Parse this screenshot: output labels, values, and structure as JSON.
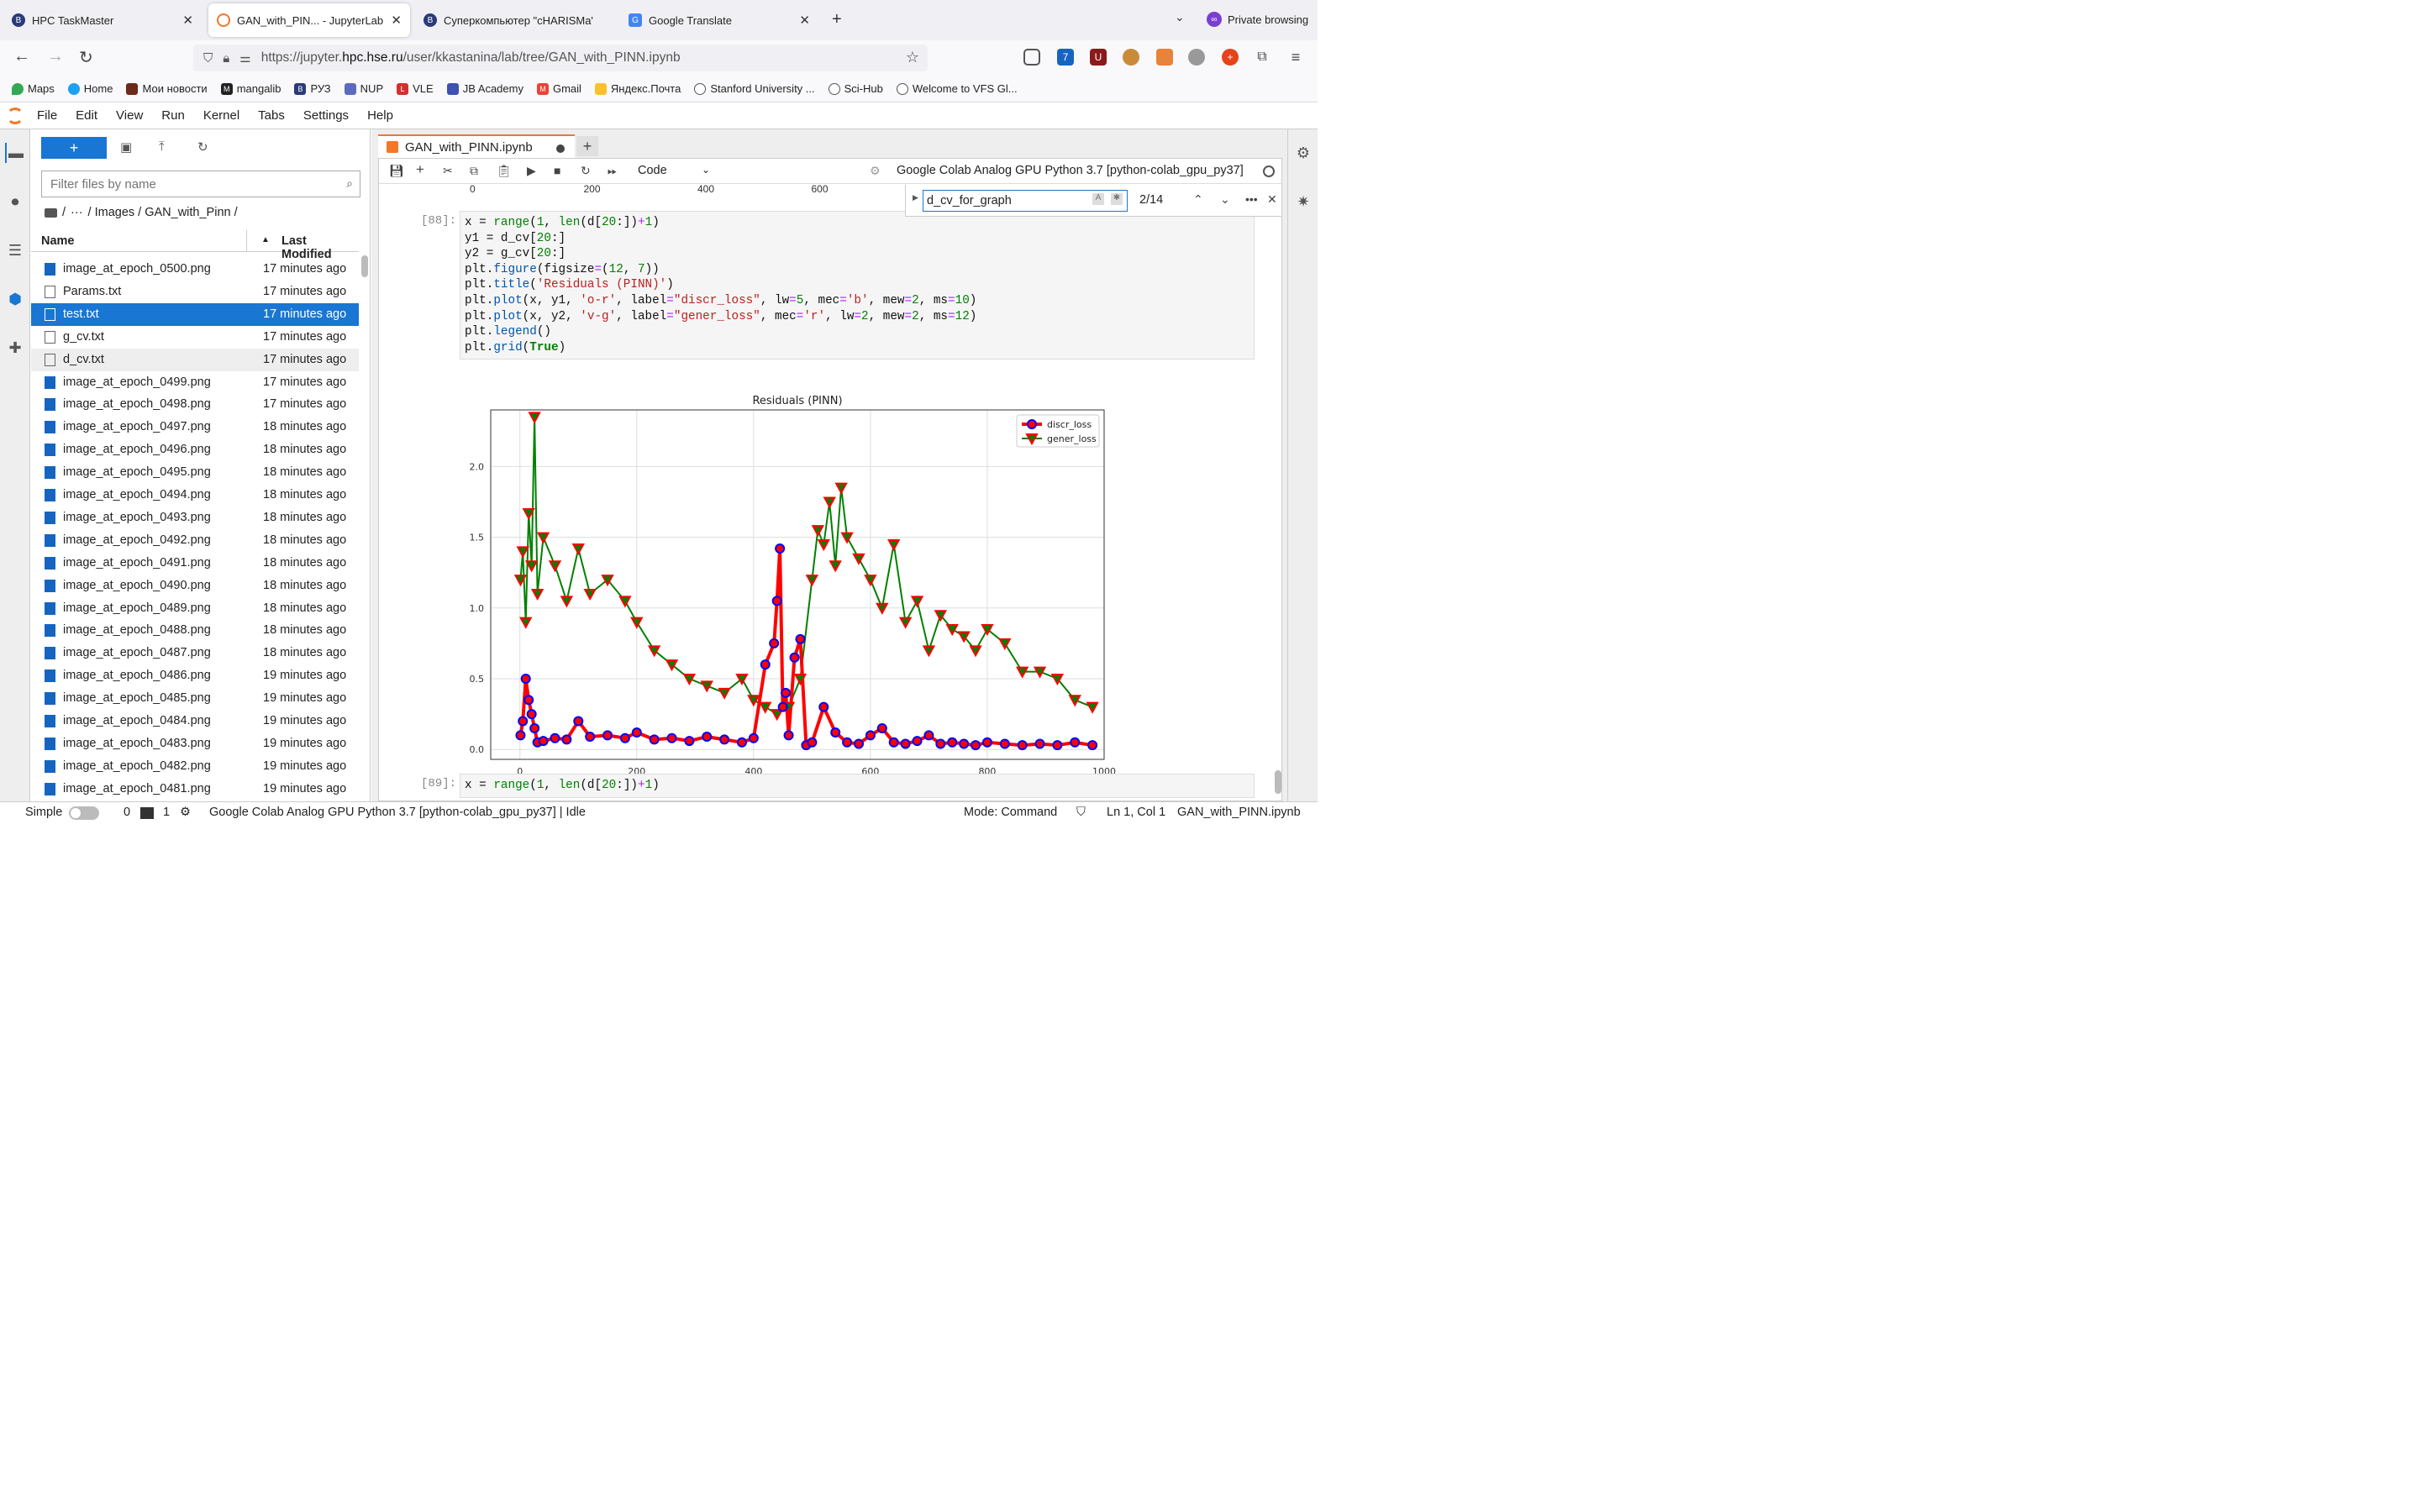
{
  "browser": {
    "tabs": [
      {
        "title": "HPC TaskMaster",
        "active": false
      },
      {
        "title": "GAN_with_PIN... - JupyterLab",
        "active": true
      },
      {
        "title": "Суперкомпьютер \"cHARISMa\"",
        "active": false
      },
      {
        "title": "Google Translate",
        "active": false
      }
    ],
    "private_label": "Private browsing",
    "url_prefix": "https://jupyter.",
    "url_domain": "hpc.hse.ru",
    "url_suffix": "/user/kkastanina/lab/tree/GAN_with_PINN.ipynb",
    "ext_badge": "7",
    "bookmarks": [
      "Maps",
      "Home",
      "Мои новости",
      "mangalib",
      "РУЗ",
      "NUP",
      "VLE",
      "JB Academy",
      "Gmail",
      "Яндекс.Почта",
      "Stanford University ...",
      "Sci-Hub",
      "Welcome to VFS Gl..."
    ]
  },
  "jupyter": {
    "menu": [
      "File",
      "Edit",
      "View",
      "Run",
      "Kernel",
      "Tabs",
      "Settings",
      "Help"
    ],
    "filter_placeholder": "Filter files by name",
    "breadcrumb": {
      "root": "/",
      "ellipsis": "···",
      "path": "/ Images / GAN_with_Pinn /"
    },
    "columns": {
      "name": "Name",
      "modified": "Last Modified"
    },
    "files": [
      {
        "name": "image_at_epoch_0500.png",
        "modified": "17 minutes ago",
        "type": "image"
      },
      {
        "name": "Params.txt",
        "modified": "17 minutes ago",
        "type": "text"
      },
      {
        "name": "test.txt",
        "modified": "17 minutes ago",
        "type": "text",
        "selected": true
      },
      {
        "name": "g_cv.txt",
        "modified": "17 minutes ago",
        "type": "text"
      },
      {
        "name": "d_cv.txt",
        "modified": "17 minutes ago",
        "type": "text",
        "hover": true
      },
      {
        "name": "image_at_epoch_0499.png",
        "modified": "17 minutes ago",
        "type": "image"
      },
      {
        "name": "image_at_epoch_0498.png",
        "modified": "17 minutes ago",
        "type": "image"
      },
      {
        "name": "image_at_epoch_0497.png",
        "modified": "18 minutes ago",
        "type": "image"
      },
      {
        "name": "image_at_epoch_0496.png",
        "modified": "18 minutes ago",
        "type": "image"
      },
      {
        "name": "image_at_epoch_0495.png",
        "modified": "18 minutes ago",
        "type": "image"
      },
      {
        "name": "image_at_epoch_0494.png",
        "modified": "18 minutes ago",
        "type": "image"
      },
      {
        "name": "image_at_epoch_0493.png",
        "modified": "18 minutes ago",
        "type": "image"
      },
      {
        "name": "image_at_epoch_0492.png",
        "modified": "18 minutes ago",
        "type": "image"
      },
      {
        "name": "image_at_epoch_0491.png",
        "modified": "18 minutes ago",
        "type": "image"
      },
      {
        "name": "image_at_epoch_0490.png",
        "modified": "18 minutes ago",
        "type": "image"
      },
      {
        "name": "image_at_epoch_0489.png",
        "modified": "18 minutes ago",
        "type": "image"
      },
      {
        "name": "image_at_epoch_0488.png",
        "modified": "18 minutes ago",
        "type": "image"
      },
      {
        "name": "image_at_epoch_0487.png",
        "modified": "18 minutes ago",
        "type": "image"
      },
      {
        "name": "image_at_epoch_0486.png",
        "modified": "19 minutes ago",
        "type": "image"
      },
      {
        "name": "image_at_epoch_0485.png",
        "modified": "19 minutes ago",
        "type": "image"
      },
      {
        "name": "image_at_epoch_0484.png",
        "modified": "19 minutes ago",
        "type": "image"
      },
      {
        "name": "image_at_epoch_0483.png",
        "modified": "19 minutes ago",
        "type": "image"
      },
      {
        "name": "image_at_epoch_0482.png",
        "modified": "19 minutes ago",
        "type": "image"
      },
      {
        "name": "image_at_epoch_0481.png",
        "modified": "19 minutes ago",
        "type": "image"
      }
    ],
    "notebook_tab": "GAN_with_PINN.ipynb",
    "cell_type": "Code",
    "kernel_name": "Google Colab Analog GPU Python 3.7 [python-colab_gpu_py37]",
    "find": {
      "query": "d_cv_for_graph",
      "count": "2/14"
    },
    "prev_axis_ticks": [
      "0",
      "200",
      "400",
      "600"
    ],
    "cells": [
      {
        "prompt": "[88]:"
      },
      {
        "prompt": "[89]:"
      }
    ],
    "status": {
      "mode_label": "Simple",
      "terminals": "0",
      "kernels": "1",
      "kernel_status": "Google Colab Analog GPU Python 3.7 [python-colab_gpu_py37] | Idle",
      "mode": "Mode: Command",
      "cursor": "Ln 1, Col 1",
      "file": "GAN_with_PINN.ipynb"
    }
  },
  "chart_data": {
    "type": "line",
    "title": "Residuals (PINN)",
    "xlabel": "",
    "ylabel": "",
    "xlim": [
      -50,
      1000
    ],
    "ylim": [
      -0.07,
      2.4
    ],
    "xticks": [
      0,
      200,
      400,
      600,
      800,
      1000
    ],
    "yticks": [
      0.0,
      0.5,
      1.0,
      1.5,
      2.0
    ],
    "grid": true,
    "legend": "top-right",
    "series": [
      {
        "name": "discr_loss",
        "color": "#ff0000",
        "marker": "o",
        "marker_edge": "#0000ff",
        "x": [
          1,
          5,
          10,
          15,
          20,
          25,
          30,
          40,
          60,
          80,
          100,
          120,
          150,
          180,
          200,
          230,
          260,
          290,
          320,
          350,
          380,
          400,
          420,
          435,
          440,
          445,
          450,
          455,
          460,
          470,
          480,
          490,
          500,
          520,
          540,
          560,
          580,
          600,
          620,
          640,
          660,
          680,
          700,
          720,
          740,
          760,
          780,
          800,
          830,
          860,
          890,
          920,
          950,
          980
        ],
        "y": [
          0.1,
          0.2,
          0.5,
          0.35,
          0.25,
          0.15,
          0.05,
          0.06,
          0.08,
          0.07,
          0.2,
          0.09,
          0.1,
          0.08,
          0.12,
          0.07,
          0.08,
          0.06,
          0.09,
          0.07,
          0.05,
          0.08,
          0.6,
          0.75,
          1.05,
          1.42,
          0.3,
          0.4,
          0.1,
          0.65,
          0.78,
          0.03,
          0.05,
          0.3,
          0.12,
          0.05,
          0.04,
          0.1,
          0.15,
          0.05,
          0.04,
          0.06,
          0.1,
          0.04,
          0.05,
          0.04,
          0.03,
          0.05,
          0.04,
          0.03,
          0.04,
          0.03,
          0.05,
          0.03
        ]
      },
      {
        "name": "gener_loss",
        "color": "#008000",
        "marker": "v",
        "marker_edge": "#ff0000",
        "x": [
          1,
          5,
          10,
          15,
          20,
          25,
          30,
          40,
          60,
          80,
          100,
          120,
          150,
          180,
          200,
          230,
          260,
          290,
          320,
          350,
          380,
          400,
          420,
          440,
          460,
          480,
          500,
          510,
          520,
          530,
          540,
          550,
          560,
          580,
          600,
          620,
          640,
          660,
          680,
          700,
          720,
          740,
          760,
          780,
          800,
          830,
          860,
          890,
          920,
          950,
          980
        ],
        "y": [
          1.2,
          1.4,
          0.9,
          1.67,
          1.3,
          2.35,
          1.1,
          1.5,
          1.3,
          1.05,
          1.42,
          1.1,
          1.2,
          1.05,
          0.9,
          0.7,
          0.6,
          0.5,
          0.45,
          0.4,
          0.5,
          0.35,
          0.3,
          0.25,
          0.3,
          0.5,
          1.2,
          1.55,
          1.45,
          1.75,
          1.3,
          1.85,
          1.5,
          1.35,
          1.2,
          1.0,
          1.45,
          0.9,
          1.05,
          0.7,
          0.95,
          0.85,
          0.8,
          0.7,
          0.85,
          0.75,
          0.55,
          0.55,
          0.5,
          0.35,
          0.3
        ]
      }
    ]
  },
  "colors": {
    "accent": "#1976d2",
    "jupyter_orange": "#f37726"
  }
}
